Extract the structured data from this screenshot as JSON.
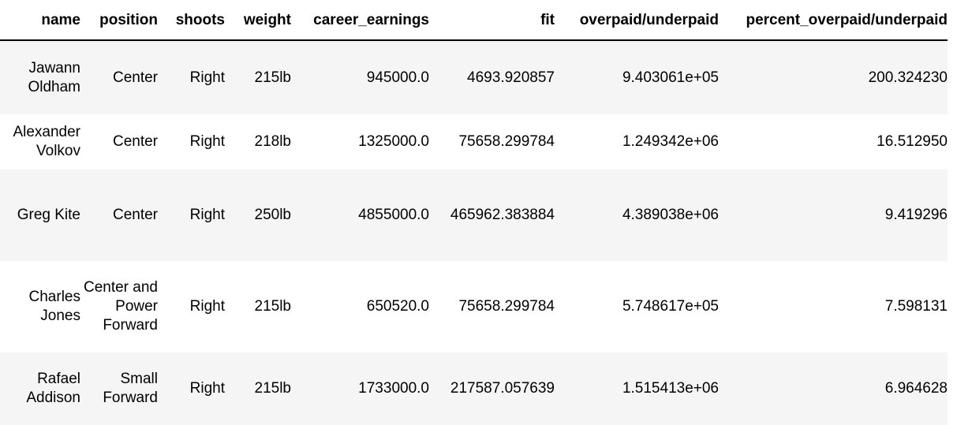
{
  "table": {
    "columns": [
      "name",
      "position",
      "shoots",
      "weight",
      "career_earnings",
      "fit",
      "overpaid/underpaid",
      "percent_overpaid/underpaid"
    ],
    "rows": [
      {
        "name": "Jawann Oldham",
        "position": "Center",
        "shoots": "Right",
        "weight": "215lb",
        "career_earnings": "945000.0",
        "fit": "4693.920857",
        "overpaid_underpaid": "9.403061e+05",
        "percent_overpaid_underpaid": "200.324230"
      },
      {
        "name": "Alexander Volkov",
        "position": "Center",
        "shoots": "Right",
        "weight": "218lb",
        "career_earnings": "1325000.0",
        "fit": "75658.299784",
        "overpaid_underpaid": "1.249342e+06",
        "percent_overpaid_underpaid": "16.512950"
      },
      {
        "name": "Greg Kite",
        "position": "Center",
        "shoots": "Right",
        "weight": "250lb",
        "career_earnings": "4855000.0",
        "fit": "465962.383884",
        "overpaid_underpaid": "4.389038e+06",
        "percent_overpaid_underpaid": "9.419296"
      },
      {
        "name": "Charles Jones",
        "position": "Center and Power Forward",
        "shoots": "Right",
        "weight": "215lb",
        "career_earnings": "650520.0",
        "fit": "75658.299784",
        "overpaid_underpaid": "5.748617e+05",
        "percent_overpaid_underpaid": "7.598131"
      },
      {
        "name": "Rafael Addison",
        "position": "Small Forward",
        "shoots": "Right",
        "weight": "215lb",
        "career_earnings": "1733000.0",
        "fit": "217587.057639",
        "overpaid_underpaid": "1.515413e+06",
        "percent_overpaid_underpaid": "6.964628"
      }
    ]
  }
}
